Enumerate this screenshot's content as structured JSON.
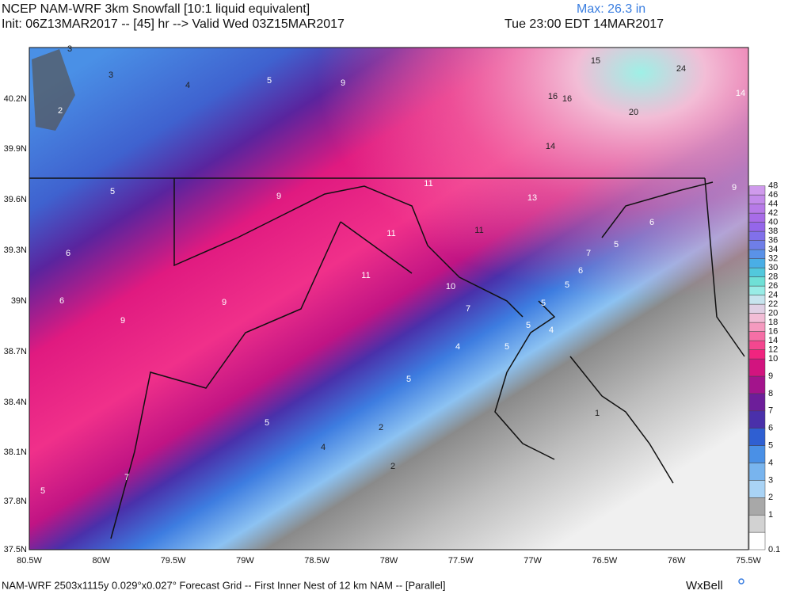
{
  "header": {
    "title": "NCEP NAM-WRF 3km Snowfall [10:1 liquid equivalent]",
    "max": "Max: 26.3 in",
    "init": "Init: 06Z13MAR2017 -- [45] hr --> Valid Wed 03Z15MAR2017",
    "valid_local": "Tue 23:00 EDT 14MAR2017"
  },
  "lat_labels": [
    "40.2N",
    "39.9N",
    "39.6N",
    "39.3N",
    "39N",
    "38.7N",
    "38.4N",
    "38.1N",
    "37.8N",
    "37.5N"
  ],
  "lon_labels": [
    "80.5W",
    "80W",
    "79.5W",
    "79W",
    "78.5W",
    "78W",
    "77.5W",
    "77W",
    "76.5W",
    "76W",
    "75.5W"
  ],
  "contour_labels": [
    3,
    3,
    4,
    5,
    9,
    15,
    24,
    14,
    2,
    16,
    16,
    20,
    14,
    5,
    9,
    11,
    13,
    9,
    11,
    11,
    6,
    6,
    5,
    7,
    11,
    6,
    10,
    5,
    6,
    9,
    7,
    5,
    9,
    5,
    4,
    4,
    5,
    5,
    1,
    5,
    2,
    4,
    2,
    7,
    5
  ],
  "colorbar": {
    "levels": [
      0.1,
      1,
      2,
      3,
      4,
      5,
      6,
      7,
      8,
      9,
      10,
      12,
      14,
      16,
      18,
      20,
      22,
      24,
      26,
      28,
      30,
      32,
      34,
      36,
      38,
      40,
      42,
      44,
      46,
      48
    ],
    "colors": [
      "#ffffff",
      "#d2d2d2",
      "#a8a8a8",
      "#a9d3f5",
      "#78b4ee",
      "#4a90e6",
      "#2f5fd2",
      "#4a30aa",
      "#6d1e9a",
      "#a3148c",
      "#d2147f",
      "#f0247f",
      "#f4478f",
      "#f56fa6",
      "#f59abf",
      "#f2bdd6",
      "#e0d0e4",
      "#c7e4ee",
      "#98ece6",
      "#6fe0d6",
      "#52c8dc",
      "#4aaee6",
      "#5a92e8",
      "#6f7ee8",
      "#8170ea",
      "#9566ea",
      "#a86ce8",
      "#b77ae8",
      "#c38aea",
      "#cf9aec"
    ]
  },
  "footer": {
    "grid": "NAM-WRF 2503x1115y 0.029°x0.027° Forecast Grid -- First Inner Nest of 12 km NAM -- [Parallel]",
    "brand": "WxBell"
  }
}
